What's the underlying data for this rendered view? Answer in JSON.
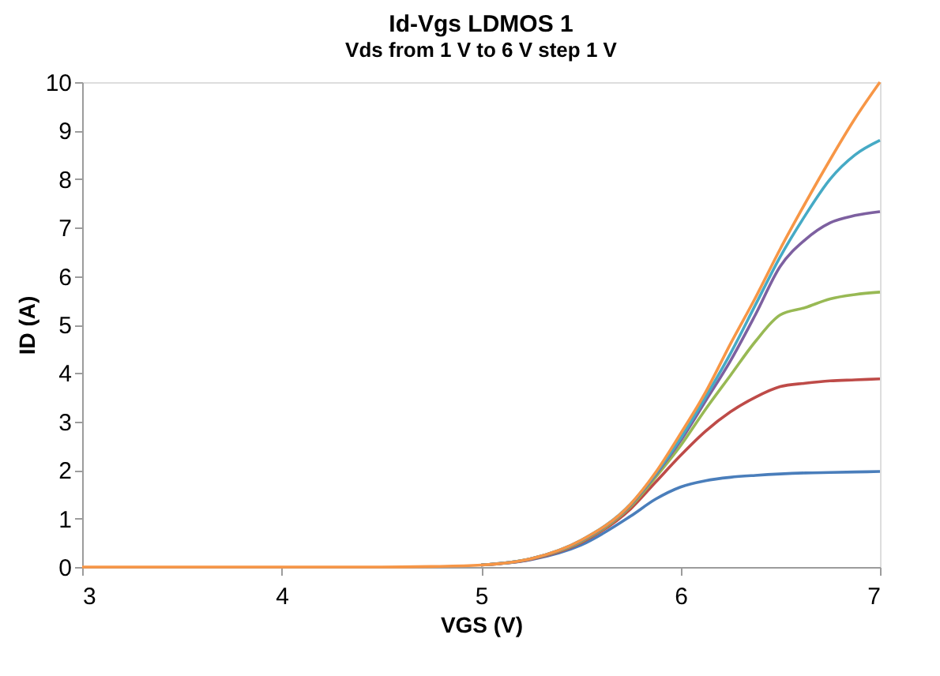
{
  "chart_data": {
    "type": "line",
    "title": "Id-Vgs LDMOS 1",
    "subtitle": "Vds from 1 V to 6 V step 1 V",
    "xlabel": "VGS (V)",
    "ylabel": "ID (A)",
    "x": [
      3,
      4,
      4.5,
      4.75,
      5,
      5.25,
      5.5,
      5.75,
      5.875,
      6,
      6.125,
      6.25,
      6.375,
      6.5,
      6.625,
      6.75,
      6.875,
      7
    ],
    "xlim": [
      3,
      7
    ],
    "xticks": [
      3,
      4,
      5,
      6,
      7
    ],
    "ylim": [
      0,
      10
    ],
    "yticks": [
      0,
      1,
      2,
      3,
      4,
      5,
      6,
      7,
      8,
      9,
      10
    ],
    "grid": false,
    "legend": false,
    "marker": "none",
    "line_style": "solid",
    "series": [
      {
        "color": "#4a7ebb",
        "values": [
          null,
          null,
          null,
          null,
          0.04,
          0.15,
          0.45,
          1.05,
          1.4,
          1.65,
          1.78,
          1.85,
          1.89,
          1.92,
          1.94,
          1.95,
          1.96,
          1.97
        ]
      },
      {
        "color": "#be4b48",
        "values": [
          null,
          null,
          null,
          null,
          0.04,
          0.16,
          0.5,
          1.2,
          1.75,
          2.3,
          2.8,
          3.2,
          3.5,
          3.72,
          3.79,
          3.84,
          3.86,
          3.88
        ]
      },
      {
        "color": "#98b954",
        "values": [
          null,
          null,
          null,
          null,
          0.04,
          0.17,
          0.52,
          1.25,
          1.85,
          2.5,
          3.25,
          3.95,
          4.65,
          5.2,
          5.35,
          5.53,
          5.62,
          5.67
        ]
      },
      {
        "color": "#7d60a0",
        "values": [
          null,
          null,
          null,
          null,
          0.04,
          0.17,
          0.54,
          1.28,
          1.9,
          2.6,
          3.42,
          4.25,
          5.2,
          6.2,
          6.75,
          7.1,
          7.25,
          7.33
        ]
      },
      {
        "color": "#46aac5",
        "values": [
          null,
          null,
          null,
          null,
          0.04,
          0.17,
          0.55,
          1.3,
          1.92,
          2.65,
          3.5,
          4.4,
          5.4,
          6.4,
          7.25,
          8.0,
          8.5,
          8.8
        ]
      },
      {
        "color": "#f79646",
        "values": [
          0,
          0,
          0,
          0.01,
          0.04,
          0.17,
          0.55,
          1.3,
          1.95,
          2.75,
          3.6,
          4.6,
          5.55,
          6.56,
          7.5,
          8.4,
          9.25,
          10
        ]
      }
    ]
  }
}
